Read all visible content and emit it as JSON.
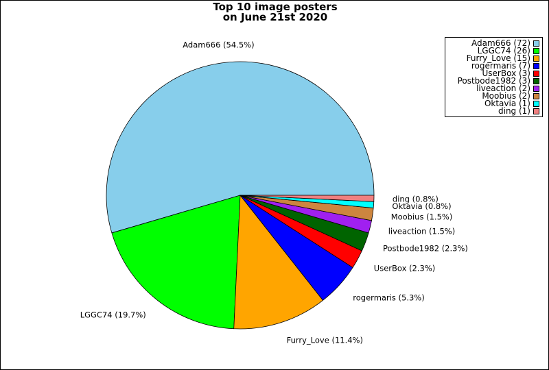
{
  "chart_data": {
    "type": "pie",
    "title": [
      "Top 10 image posters",
      "on June 21st 2020"
    ],
    "slices": [
      {
        "name": "Adam666",
        "value": 72,
        "percent_label": "Adam666 (54.5%)",
        "legend_label": "Adam666 (72)",
        "color": "#87CEEB"
      },
      {
        "name": "LGGC74",
        "value": 26,
        "percent_label": "LGGC74 (19.7%)",
        "legend_label": "LGGC74 (26)",
        "color": "#00FF00"
      },
      {
        "name": "Furry_Love",
        "value": 15,
        "percent_label": "Furry_Love (11.4%)",
        "legend_label": "Furry_Love (15)",
        "color": "#FFA500"
      },
      {
        "name": "rogermaris",
        "value": 7,
        "percent_label": "rogermaris (5.3%)",
        "legend_label": "rogermaris (7)",
        "color": "#0000FF"
      },
      {
        "name": "UserBox",
        "value": 3,
        "percent_label": "UserBox (2.3%)",
        "legend_label": "UserBox (3)",
        "color": "#FF0000"
      },
      {
        "name": "Postbode1982",
        "value": 3,
        "percent_label": "Postbode1982 (2.3%)",
        "legend_label": "Postbode1982 (3)",
        "color": "#006400"
      },
      {
        "name": "liveaction",
        "value": 2,
        "percent_label": "liveaction (1.5%)",
        "legend_label": "liveaction (2)",
        "color": "#A020F0"
      },
      {
        "name": "Moobius",
        "value": 2,
        "percent_label": "Moobius (1.5%)",
        "legend_label": "Moobius (2)",
        "color": "#CD853F"
      },
      {
        "name": "Oktavia",
        "value": 1,
        "percent_label": "Oktavia (0.8%)",
        "legend_label": "Oktavia (1)",
        "color": "#00FFFF"
      },
      {
        "name": "ding",
        "value": 1,
        "percent_label": "ding (0.8%)",
        "legend_label": "ding (1)",
        "color": "#F08080"
      }
    ],
    "legend_position": "top-right"
  }
}
